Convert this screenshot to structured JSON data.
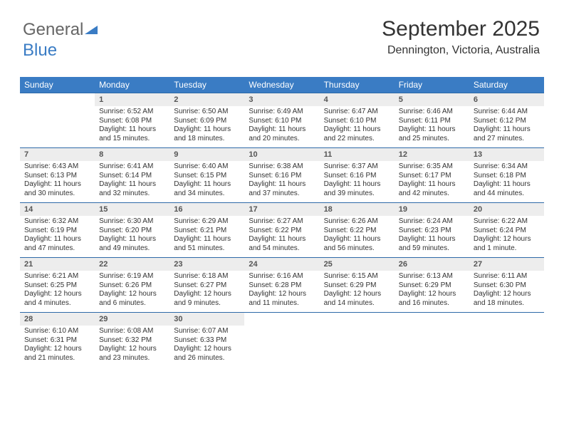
{
  "logo": {
    "part1": "General",
    "part2": "Blue"
  },
  "header": {
    "month_title": "September 2025",
    "location": "Dennington, Victoria, Australia"
  },
  "style": {
    "header_bg": "#3a7cc4",
    "header_text": "#ffffff",
    "daynum_bg": "#ededed",
    "rule_color": "#2e6aa8",
    "body_text": "#333333",
    "logo_blue": "#3a7cc4",
    "font_family": "Arial",
    "title_fontsize_pt": 22,
    "location_fontsize_pt": 12,
    "weekday_fontsize_pt": 9,
    "cell_fontsize_pt": 7.5
  },
  "weekdays": [
    "Sunday",
    "Monday",
    "Tuesday",
    "Wednesday",
    "Thursday",
    "Friday",
    "Saturday"
  ],
  "calendar": {
    "first_weekday_index": 1,
    "days": [
      {
        "n": 1,
        "sr": "6:52 AM",
        "ss": "6:08 PM",
        "dl": "11 hours and 15 minutes."
      },
      {
        "n": 2,
        "sr": "6:50 AM",
        "ss": "6:09 PM",
        "dl": "11 hours and 18 minutes."
      },
      {
        "n": 3,
        "sr": "6:49 AM",
        "ss": "6:10 PM",
        "dl": "11 hours and 20 minutes."
      },
      {
        "n": 4,
        "sr": "6:47 AM",
        "ss": "6:10 PM",
        "dl": "11 hours and 22 minutes."
      },
      {
        "n": 5,
        "sr": "6:46 AM",
        "ss": "6:11 PM",
        "dl": "11 hours and 25 minutes."
      },
      {
        "n": 6,
        "sr": "6:44 AM",
        "ss": "6:12 PM",
        "dl": "11 hours and 27 minutes."
      },
      {
        "n": 7,
        "sr": "6:43 AM",
        "ss": "6:13 PM",
        "dl": "11 hours and 30 minutes."
      },
      {
        "n": 8,
        "sr": "6:41 AM",
        "ss": "6:14 PM",
        "dl": "11 hours and 32 minutes."
      },
      {
        "n": 9,
        "sr": "6:40 AM",
        "ss": "6:15 PM",
        "dl": "11 hours and 34 minutes."
      },
      {
        "n": 10,
        "sr": "6:38 AM",
        "ss": "6:16 PM",
        "dl": "11 hours and 37 minutes."
      },
      {
        "n": 11,
        "sr": "6:37 AM",
        "ss": "6:16 PM",
        "dl": "11 hours and 39 minutes."
      },
      {
        "n": 12,
        "sr": "6:35 AM",
        "ss": "6:17 PM",
        "dl": "11 hours and 42 minutes."
      },
      {
        "n": 13,
        "sr": "6:34 AM",
        "ss": "6:18 PM",
        "dl": "11 hours and 44 minutes."
      },
      {
        "n": 14,
        "sr": "6:32 AM",
        "ss": "6:19 PM",
        "dl": "11 hours and 47 minutes."
      },
      {
        "n": 15,
        "sr": "6:30 AM",
        "ss": "6:20 PM",
        "dl": "11 hours and 49 minutes."
      },
      {
        "n": 16,
        "sr": "6:29 AM",
        "ss": "6:21 PM",
        "dl": "11 hours and 51 minutes."
      },
      {
        "n": 17,
        "sr": "6:27 AM",
        "ss": "6:22 PM",
        "dl": "11 hours and 54 minutes."
      },
      {
        "n": 18,
        "sr": "6:26 AM",
        "ss": "6:22 PM",
        "dl": "11 hours and 56 minutes."
      },
      {
        "n": 19,
        "sr": "6:24 AM",
        "ss": "6:23 PM",
        "dl": "11 hours and 59 minutes."
      },
      {
        "n": 20,
        "sr": "6:22 AM",
        "ss": "6:24 PM",
        "dl": "12 hours and 1 minute."
      },
      {
        "n": 21,
        "sr": "6:21 AM",
        "ss": "6:25 PM",
        "dl": "12 hours and 4 minutes."
      },
      {
        "n": 22,
        "sr": "6:19 AM",
        "ss": "6:26 PM",
        "dl": "12 hours and 6 minutes."
      },
      {
        "n": 23,
        "sr": "6:18 AM",
        "ss": "6:27 PM",
        "dl": "12 hours and 9 minutes."
      },
      {
        "n": 24,
        "sr": "6:16 AM",
        "ss": "6:28 PM",
        "dl": "12 hours and 11 minutes."
      },
      {
        "n": 25,
        "sr": "6:15 AM",
        "ss": "6:29 PM",
        "dl": "12 hours and 14 minutes."
      },
      {
        "n": 26,
        "sr": "6:13 AM",
        "ss": "6:29 PM",
        "dl": "12 hours and 16 minutes."
      },
      {
        "n": 27,
        "sr": "6:11 AM",
        "ss": "6:30 PM",
        "dl": "12 hours and 18 minutes."
      },
      {
        "n": 28,
        "sr": "6:10 AM",
        "ss": "6:31 PM",
        "dl": "12 hours and 21 minutes."
      },
      {
        "n": 29,
        "sr": "6:08 AM",
        "ss": "6:32 PM",
        "dl": "12 hours and 23 minutes."
      },
      {
        "n": 30,
        "sr": "6:07 AM",
        "ss": "6:33 PM",
        "dl": "12 hours and 26 minutes."
      }
    ]
  },
  "labels": {
    "sunrise": "Sunrise:",
    "sunset": "Sunset:",
    "daylight": "Daylight:"
  }
}
